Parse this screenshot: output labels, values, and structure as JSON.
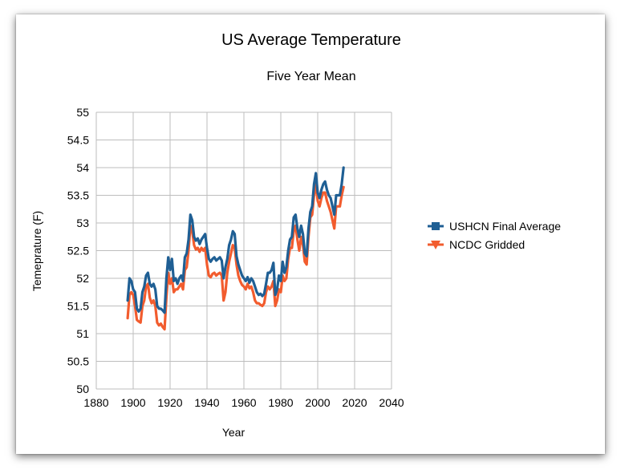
{
  "chart_data": {
    "type": "line",
    "title": "US Average Temperature",
    "subtitle": "Five Year Mean",
    "xlabel": "Year",
    "ylabel": "Temeprature (F)",
    "xlim": [
      1880,
      2040
    ],
    "ylim": [
      50,
      55
    ],
    "xticks": [
      1880,
      1900,
      1920,
      1940,
      1960,
      1980,
      2000,
      2020,
      2040
    ],
    "yticks": [
      50,
      50.5,
      51,
      51.5,
      52,
      52.5,
      53,
      53.5,
      54,
      54.5,
      55
    ],
    "grid": true,
    "legend_position": "right",
    "series": [
      {
        "name": "USHCN Final Average",
        "color": "#1f5f94",
        "marker": "square",
        "x": [
          1897,
          1898,
          1899,
          1900,
          1901,
          1902,
          1903,
          1904,
          1905,
          1906,
          1907,
          1908,
          1909,
          1910,
          1911,
          1912,
          1913,
          1914,
          1915,
          1916,
          1917,
          1918,
          1919,
          1920,
          1921,
          1922,
          1923,
          1924,
          1925,
          1926,
          1927,
          1928,
          1929,
          1930,
          1931,
          1932,
          1933,
          1934,
          1935,
          1936,
          1937,
          1938,
          1939,
          1940,
          1941,
          1942,
          1943,
          1944,
          1945,
          1946,
          1947,
          1948,
          1949,
          1950,
          1951,
          1952,
          1953,
          1954,
          1955,
          1956,
          1957,
          1958,
          1959,
          1960,
          1961,
          1962,
          1963,
          1964,
          1965,
          1966,
          1967,
          1968,
          1969,
          1970,
          1971,
          1972,
          1973,
          1974,
          1975,
          1976,
          1977,
          1978,
          1979,
          1980,
          1981,
          1982,
          1983,
          1984,
          1985,
          1986,
          1987,
          1988,
          1989,
          1990,
          1991,
          1992,
          1993,
          1994,
          1995,
          1996,
          1997,
          1998,
          1999,
          2000,
          2001,
          2002,
          2003,
          2004,
          2005,
          2006,
          2007,
          2008,
          2009,
          2010,
          2011,
          2012,
          2013,
          2014
        ],
        "y": [
          51.6,
          52.0,
          51.95,
          51.8,
          51.75,
          51.45,
          51.4,
          51.45,
          51.75,
          51.85,
          52.05,
          52.1,
          51.9,
          51.85,
          51.9,
          51.8,
          51.5,
          51.45,
          51.45,
          51.42,
          51.38,
          52.0,
          52.38,
          52.15,
          52.35,
          51.95,
          52.0,
          51.9,
          52.0,
          52.05,
          51.95,
          52.38,
          52.45,
          52.7,
          53.15,
          53.05,
          52.75,
          52.68,
          52.72,
          52.62,
          52.7,
          52.75,
          52.8,
          52.55,
          52.35,
          52.3,
          52.35,
          52.38,
          52.32,
          52.35,
          52.38,
          52.32,
          52.0,
          52.2,
          52.35,
          52.6,
          52.7,
          52.85,
          52.8,
          52.4,
          52.25,
          52.15,
          52.05,
          52.0,
          51.95,
          52.02,
          51.92,
          52.0,
          51.95,
          51.85,
          51.75,
          51.7,
          51.72,
          51.68,
          51.72,
          51.9,
          52.1,
          52.1,
          52.15,
          52.28,
          51.7,
          51.8,
          52.05,
          51.95,
          52.3,
          52.1,
          52.2,
          52.5,
          52.7,
          52.75,
          53.1,
          53.15,
          52.9,
          52.75,
          52.95,
          52.8,
          52.45,
          52.4,
          52.9,
          53.2,
          53.3,
          53.7,
          53.9,
          53.55,
          53.45,
          53.6,
          53.7,
          53.75,
          53.6,
          53.5,
          53.45,
          53.3,
          53.15,
          53.5,
          53.5,
          53.5,
          53.7,
          54.0
        ]
      },
      {
        "name": "NCDC Gridded",
        "color": "#f25c2e",
        "marker": "triangle-down",
        "x": [
          1897,
          1898,
          1899,
          1900,
          1901,
          1902,
          1903,
          1904,
          1905,
          1906,
          1907,
          1908,
          1909,
          1910,
          1911,
          1912,
          1913,
          1914,
          1915,
          1916,
          1917,
          1918,
          1919,
          1920,
          1921,
          1922,
          1923,
          1924,
          1925,
          1926,
          1927,
          1928,
          1929,
          1930,
          1931,
          1932,
          1933,
          1934,
          1935,
          1936,
          1937,
          1938,
          1939,
          1940,
          1941,
          1942,
          1943,
          1944,
          1945,
          1946,
          1947,
          1948,
          1949,
          1950,
          1951,
          1952,
          1953,
          1954,
          1955,
          1956,
          1957,
          1958,
          1959,
          1960,
          1961,
          1962,
          1963,
          1964,
          1965,
          1966,
          1967,
          1968,
          1969,
          1970,
          1971,
          1972,
          1973,
          1974,
          1975,
          1976,
          1977,
          1978,
          1979,
          1980,
          1981,
          1982,
          1983,
          1984,
          1985,
          1986,
          1987,
          1988,
          1989,
          1990,
          1991,
          1992,
          1993,
          1994,
          1995,
          1996,
          1997,
          1998,
          1999,
          2000,
          2001,
          2002,
          2003,
          2004,
          2005,
          2006,
          2007,
          2008,
          2009,
          2010,
          2011,
          2012,
          2013,
          2014
        ],
        "y": [
          51.28,
          51.7,
          51.75,
          51.7,
          51.5,
          51.25,
          51.22,
          51.2,
          51.5,
          51.6,
          51.85,
          51.9,
          51.65,
          51.55,
          51.6,
          51.5,
          51.2,
          51.15,
          51.18,
          51.12,
          51.08,
          51.65,
          52.1,
          51.9,
          52.0,
          51.75,
          51.8,
          51.8,
          51.85,
          51.9,
          51.8,
          52.15,
          52.2,
          52.5,
          52.95,
          52.85,
          52.6,
          52.52,
          52.55,
          52.48,
          52.55,
          52.5,
          52.55,
          52.25,
          52.05,
          52.02,
          52.08,
          52.1,
          52.05,
          52.08,
          52.1,
          52.05,
          51.6,
          51.75,
          52.1,
          52.3,
          52.45,
          52.6,
          52.55,
          52.25,
          52.05,
          51.95,
          51.88,
          51.85,
          51.8,
          51.9,
          51.82,
          51.85,
          51.75,
          51.6,
          51.55,
          51.55,
          51.52,
          51.5,
          51.55,
          51.75,
          51.85,
          51.8,
          51.85,
          51.95,
          51.5,
          51.6,
          51.8,
          51.75,
          52.05,
          51.95,
          52.0,
          52.35,
          52.55,
          52.55,
          52.85,
          52.95,
          52.7,
          52.5,
          52.75,
          52.6,
          52.3,
          52.25,
          52.75,
          53.1,
          53.15,
          53.5,
          53.7,
          53.4,
          53.3,
          53.45,
          53.55,
          53.55,
          53.4,
          53.3,
          53.2,
          53.05,
          52.9,
          53.3,
          53.3,
          53.3,
          53.5,
          53.65
        ]
      }
    ]
  }
}
